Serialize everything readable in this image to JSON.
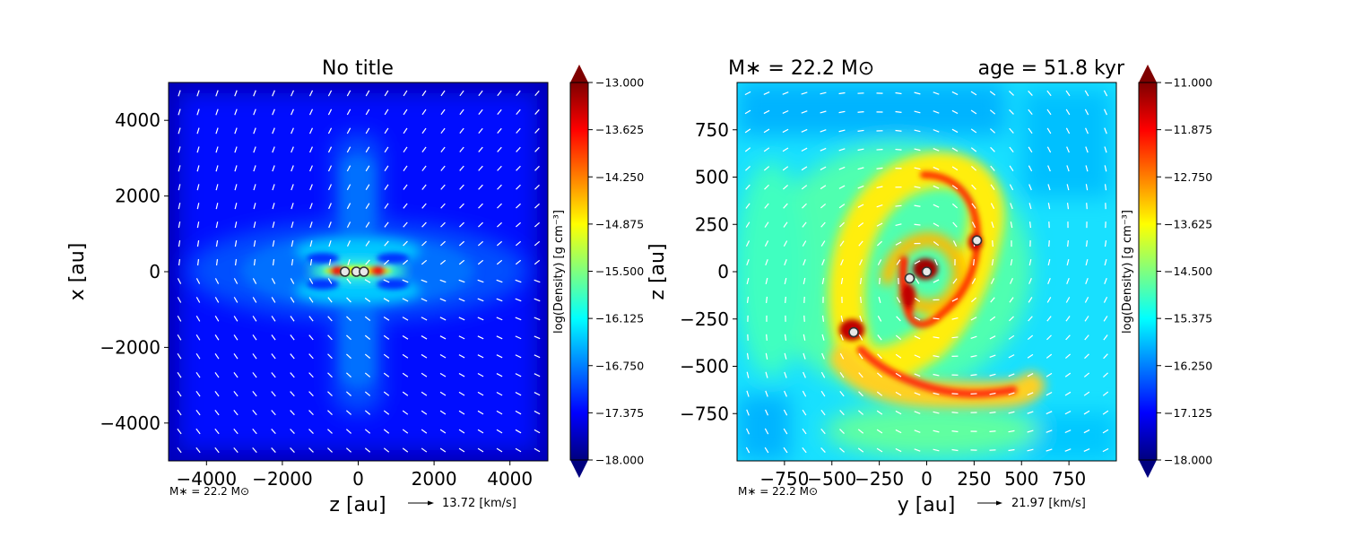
{
  "colormap": [
    "#00007f",
    "#0000ff",
    "#007fff",
    "#00ffff",
    "#7fff7f",
    "#ffff00",
    "#ff7f00",
    "#ff0000",
    "#7f0000"
  ],
  "chart_data": [
    {
      "type": "heatmap",
      "title": "No title",
      "xlabel": "z [au]",
      "ylabel": "x [au]",
      "xlim": [
        -5000,
        5000
      ],
      "ylim": [
        -5000,
        5000
      ],
      "xticks": [
        "−4000",
        "−2000",
        "0",
        "2000",
        "4000"
      ],
      "xtick_values": [
        -4000,
        -2000,
        0,
        2000,
        4000
      ],
      "yticks": [
        "4000",
        "2000",
        "0",
        "−2000",
        "−4000"
      ],
      "ytick_values": [
        4000,
        2000,
        0,
        -2000,
        -4000
      ],
      "colorbar": {
        "label": "log(Density) [g cm⁻³]",
        "range": [
          -18.0,
          -13.0
        ],
        "ticks": [
          "−13.000",
          "−13.625",
          "−14.250",
          "−14.875",
          "−15.500",
          "−16.125",
          "−16.750",
          "−17.375",
          "−18.000"
        ]
      },
      "mass_note": "M∗ = 22.2 M⊙",
      "velocity_key": "13.72 [km/s]",
      "sinks": [
        {
          "x": -350,
          "y": 0
        },
        {
          "x": -50,
          "y": 0
        },
        {
          "x": 150,
          "y": 0
        }
      ]
    },
    {
      "type": "heatmap",
      "title_left": "M∗ = 22.2 M⊙",
      "title_right": "age = 51.8 kyr",
      "xlabel": "y [au]",
      "ylabel": "z [au]",
      "xlim": [
        -1000,
        1000
      ],
      "ylim": [
        -1000,
        1000
      ],
      "xticks": [
        "−750",
        "−500",
        "−250",
        "0",
        "250",
        "500",
        "750"
      ],
      "xtick_values": [
        -750,
        -500,
        -250,
        0,
        250,
        500,
        750
      ],
      "yticks": [
        "750",
        "500",
        "250",
        "0",
        "−250",
        "−500",
        "−750"
      ],
      "ytick_values": [
        750,
        500,
        250,
        0,
        -250,
        -500,
        -750
      ],
      "colorbar": {
        "label": "log(Density) [g cm⁻³]",
        "range": [
          -18.0,
          -11.0
        ],
        "ticks": [
          "−11.000",
          "−11.875",
          "−12.750",
          "−13.625",
          "−14.500",
          "−15.375",
          "−16.250",
          "−17.125",
          "−18.000"
        ]
      },
      "mass_note": "M∗ = 22.2 M⊙",
      "velocity_key": "21.97 [km/s]",
      "sinks": [
        {
          "x": 0,
          "y": 0
        },
        {
          "x": -90,
          "y": -35
        },
        {
          "x": 265,
          "y": 165
        },
        {
          "x": -385,
          "y": -320
        }
      ]
    }
  ]
}
